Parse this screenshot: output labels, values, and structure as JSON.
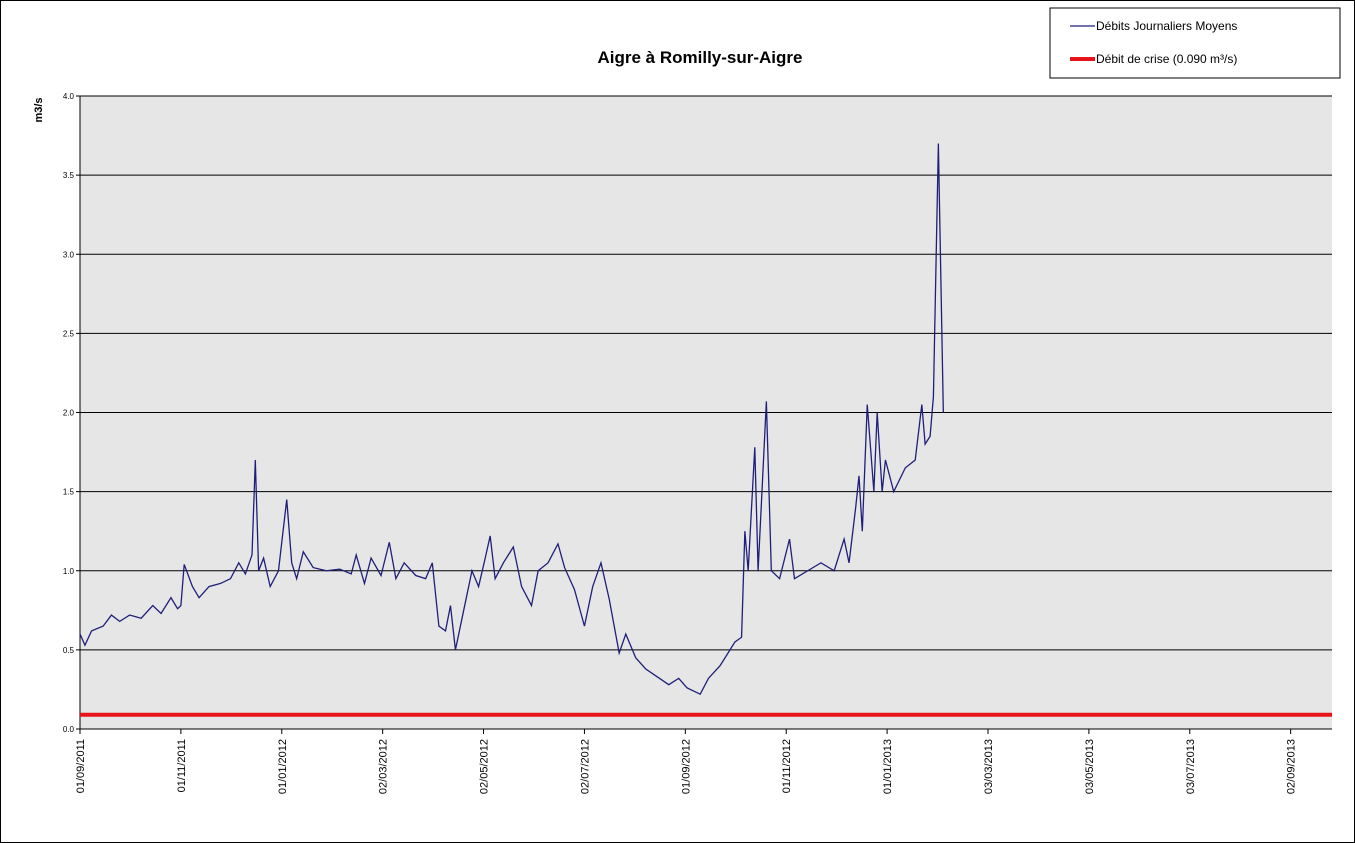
{
  "chart_data": {
    "type": "line",
    "title": "Aigre à Romilly-sur-Aigre",
    "y_label": "m3/s",
    "xlim": [
      "2011-09-01",
      "2013-09-27"
    ],
    "xticks": [
      {
        "value": "2011-09-01",
        "label": "01/09/2011"
      },
      {
        "value": "2011-11-01",
        "label": "01/11/2011"
      },
      {
        "value": "2012-01-01",
        "label": "01/01/2012"
      },
      {
        "value": "2012-03-02",
        "label": "02/03/2012"
      },
      {
        "value": "2012-05-02",
        "label": "02/05/2012"
      },
      {
        "value": "2012-07-02",
        "label": "02/07/2012"
      },
      {
        "value": "2012-09-01",
        "label": "01/09/2012"
      },
      {
        "value": "2012-11-01",
        "label": "01/11/2012"
      },
      {
        "value": "2013-01-01",
        "label": "01/01/2013"
      },
      {
        "value": "2013-03-03",
        "label": "03/03/2013"
      },
      {
        "value": "2013-05-03",
        "label": "03/05/2013"
      },
      {
        "value": "2013-07-03",
        "label": "03/07/2013"
      },
      {
        "value": "2013-09-02",
        "label": "02/09/2013"
      }
    ],
    "ylim": [
      0,
      4
    ],
    "yticks": [
      {
        "value": 0,
        "label": "0.0"
      },
      0.5,
      {
        "value": 1,
        "label": "1.0"
      },
      1.5,
      {
        "value": 2,
        "label": "2.0"
      },
      2.5,
      {
        "value": 3,
        "label": "3.0"
      },
      3.5,
      {
        "value": 4,
        "label": "4.0"
      }
    ],
    "grid": true,
    "legend": "top-right",
    "series": [
      {
        "name": "Débits Journaliers Moyens",
        "color": "#1f1f7a",
        "x": [
          "2011-09-01",
          "2011-09-04",
          "2011-09-08",
          "2011-09-15",
          "2011-09-20",
          "2011-09-25",
          "2011-10-01",
          "2011-10-08",
          "2011-10-15",
          "2011-10-20",
          "2011-10-26",
          "2011-10-30",
          "2011-11-01",
          "2011-11-03",
          "2011-11-08",
          "2011-11-12",
          "2011-11-18",
          "2011-11-25",
          "2011-12-01",
          "2011-12-06",
          "2011-12-10",
          "2011-12-14",
          "2011-12-16",
          "2011-12-18",
          "2011-12-21",
          "2011-12-25",
          "2011-12-30",
          "2012-01-04",
          "2012-01-07",
          "2012-01-10",
          "2012-01-14",
          "2012-01-20",
          "2012-01-28",
          "2012-02-05",
          "2012-02-12",
          "2012-02-15",
          "2012-02-20",
          "2012-02-24",
          "2012-03-01",
          "2012-03-06",
          "2012-03-10",
          "2012-03-15",
          "2012-03-22",
          "2012-03-28",
          "2012-04-01",
          "2012-04-05",
          "2012-04-09",
          "2012-04-12",
          "2012-04-15",
          "2012-04-20",
          "2012-04-25",
          "2012-04-29",
          "2012-05-03",
          "2012-05-06",
          "2012-05-09",
          "2012-05-14",
          "2012-05-20",
          "2012-05-25",
          "2012-05-31",
          "2012-06-04",
          "2012-06-10",
          "2012-06-16",
          "2012-06-20",
          "2012-06-26",
          "2012-07-02",
          "2012-07-07",
          "2012-07-12",
          "2012-07-17",
          "2012-07-23",
          "2012-07-27",
          "2012-08-02",
          "2012-08-08",
          "2012-08-15",
          "2012-08-22",
          "2012-08-28",
          "2012-09-02",
          "2012-09-10",
          "2012-09-15",
          "2012-09-22",
          "2012-09-28",
          "2012-10-01",
          "2012-10-05",
          "2012-10-07",
          "2012-10-09",
          "2012-10-13",
          "2012-10-15",
          "2012-10-20",
          "2012-10-23",
          "2012-10-28",
          "2012-11-03",
          "2012-11-06",
          "2012-11-14",
          "2012-11-22",
          "2012-11-30",
          "2012-12-06",
          "2012-12-09",
          "2012-12-13",
          "2012-12-15",
          "2012-12-17",
          "2012-12-20",
          "2012-12-24",
          "2012-12-26",
          "2012-12-29",
          "2012-12-31",
          "2013-01-05",
          "2013-01-12",
          "2013-01-18",
          "2013-01-22",
          "2013-01-24",
          "2013-01-27",
          "2013-01-29",
          "2013-02-01",
          "2013-02-04"
        ],
        "values": [
          0.6,
          0.53,
          0.62,
          0.65,
          0.72,
          0.68,
          0.72,
          0.7,
          0.78,
          0.73,
          0.83,
          0.76,
          0.78,
          1.04,
          0.9,
          0.83,
          0.9,
          0.92,
          0.95,
          1.05,
          0.98,
          1.1,
          1.7,
          1.0,
          1.08,
          0.9,
          1.0,
          1.45,
          1.05,
          0.95,
          1.12,
          1.02,
          1.0,
          1.01,
          0.98,
          1.1,
          0.92,
          1.08,
          0.97,
          1.18,
          0.95,
          1.05,
          0.97,
          0.95,
          1.05,
          0.65,
          0.62,
          0.78,
          0.5,
          0.75,
          1.0,
          0.9,
          1.08,
          1.22,
          0.95,
          1.05,
          1.15,
          0.9,
          0.78,
          1.0,
          1.05,
          1.17,
          1.02,
          0.88,
          0.65,
          0.9,
          1.05,
          0.82,
          0.48,
          0.6,
          0.45,
          0.38,
          0.33,
          0.28,
          0.32,
          0.26,
          0.22,
          0.32,
          0.4,
          0.5,
          0.55,
          0.58,
          1.25,
          1.0,
          1.78,
          1.0,
          2.07,
          1.0,
          0.95,
          1.2,
          0.95,
          1.0,
          1.05,
          1.0,
          1.2,
          1.05,
          1.4,
          1.6,
          1.25,
          2.05,
          1.5,
          2.0,
          1.5,
          1.7,
          1.5,
          1.65,
          1.7,
          2.05,
          1.8,
          1.85,
          2.1,
          3.7,
          2.0
        ]
      },
      {
        "name": "Débit de crise (0.090 m³/s)",
        "color": "#e8141c",
        "x": [
          "2011-09-01",
          "2013-09-27"
        ],
        "values": [
          0.09,
          0.09
        ]
      }
    ]
  }
}
